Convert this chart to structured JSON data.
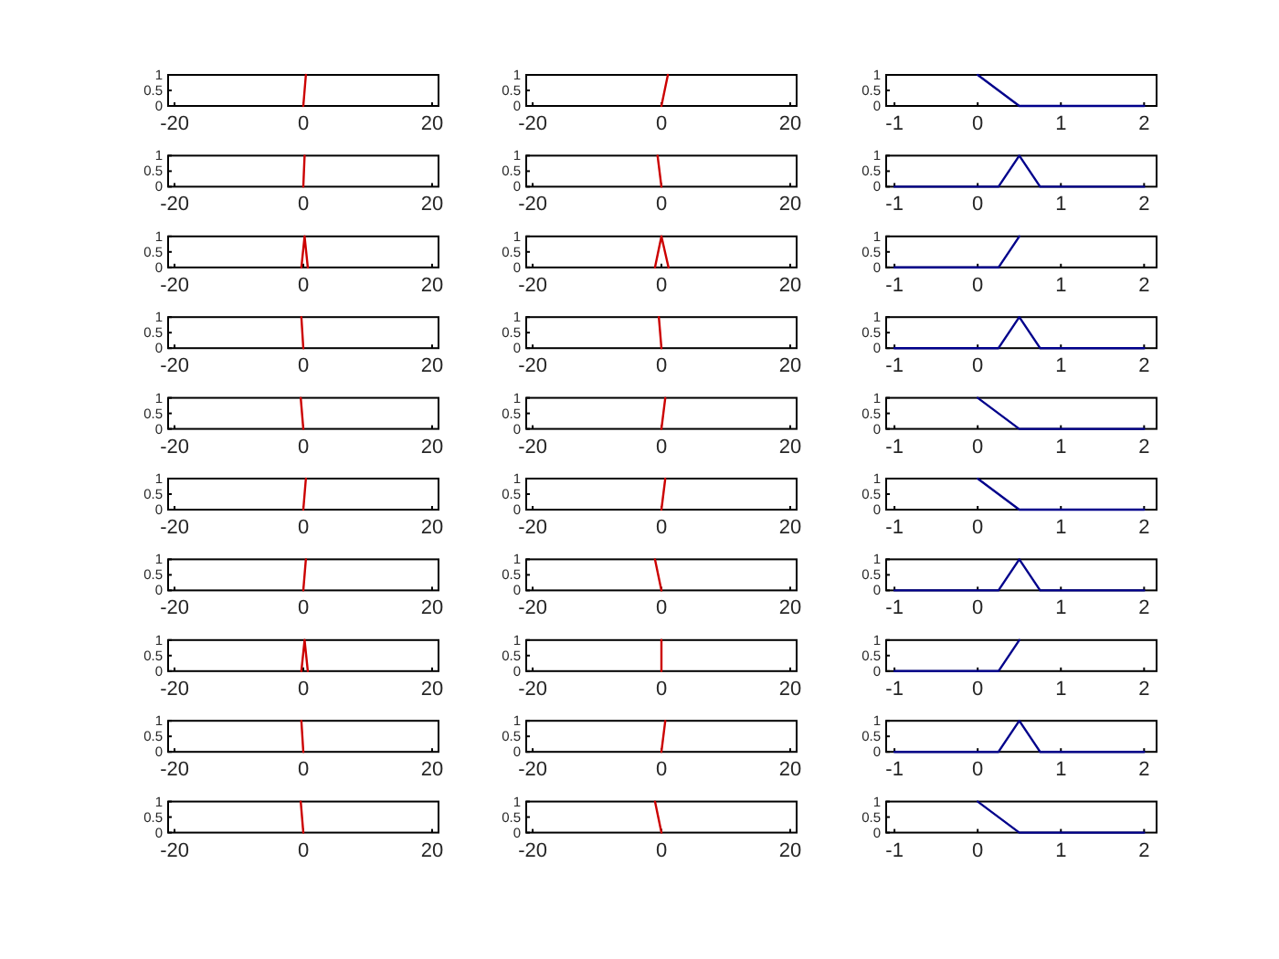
{
  "chart_data": [
    {
      "type": "line",
      "x": [
        0,
        0.4
      ],
      "values": [
        0,
        1
      ],
      "color": "#cc0000",
      "xlim": [
        -21,
        21
      ],
      "ylim": [
        0,
        1
      ],
      "xticks": [
        -20,
        0,
        20
      ],
      "yticks": [
        0,
        0.5,
        1
      ]
    },
    {
      "type": "line",
      "x": [
        0,
        1
      ],
      "values": [
        0,
        1
      ],
      "color": "#cc0000",
      "xlim": [
        -21,
        21
      ],
      "ylim": [
        0,
        1
      ],
      "xticks": [
        -20,
        0,
        20
      ],
      "yticks": [
        0,
        0.5,
        1
      ]
    },
    {
      "type": "line",
      "x": [
        0,
        0.5,
        2
      ],
      "values": [
        1,
        0,
        0
      ],
      "color": "#00008b",
      "xlim": [
        -1.1,
        2.15
      ],
      "ylim": [
        0,
        1
      ],
      "xticks": [
        -1,
        0,
        1,
        2
      ],
      "yticks": [
        0,
        0.5,
        1
      ]
    },
    {
      "type": "line",
      "x": [
        0,
        0.2
      ],
      "values": [
        0,
        1
      ],
      "color": "#cc0000",
      "xlim": [
        -21,
        21
      ],
      "ylim": [
        0,
        1
      ],
      "xticks": [
        -20,
        0,
        20
      ],
      "yticks": [
        0,
        0.5,
        1
      ]
    },
    {
      "type": "line",
      "x": [
        -0.6,
        0
      ],
      "values": [
        1,
        0
      ],
      "color": "#cc0000",
      "xlim": [
        -21,
        21
      ],
      "ylim": [
        0,
        1
      ],
      "xticks": [
        -20,
        0,
        20
      ],
      "yticks": [
        0,
        0.5,
        1
      ]
    },
    {
      "type": "line",
      "x": [
        -1,
        0.25,
        0.5,
        0.75,
        2
      ],
      "values": [
        0,
        0,
        1,
        0,
        0
      ],
      "color": "#00008b",
      "xlim": [
        -1.1,
        2.15
      ],
      "ylim": [
        0,
        1
      ],
      "xticks": [
        -1,
        0,
        1,
        2
      ],
      "yticks": [
        0,
        0.5,
        1
      ]
    },
    {
      "type": "line",
      "x": [
        -0.3,
        0.2,
        0.7
      ],
      "values": [
        0,
        1,
        0
      ],
      "color": "#cc0000",
      "xlim": [
        -21,
        21
      ],
      "ylim": [
        0,
        1
      ],
      "xticks": [
        -20,
        0,
        20
      ],
      "yticks": [
        0,
        0.5,
        1
      ]
    },
    {
      "type": "line",
      "x": [
        -1,
        0,
        1.1
      ],
      "values": [
        0,
        1,
        0
      ],
      "color": "#cc0000",
      "xlim": [
        -21,
        21
      ],
      "ylim": [
        0,
        1
      ],
      "xticks": [
        -20,
        0,
        20
      ],
      "yticks": [
        0,
        0.5,
        1
      ]
    },
    {
      "type": "line",
      "x": [
        -1,
        0.25,
        0.5
      ],
      "values": [
        0,
        0,
        1
      ],
      "color": "#00008b",
      "xlim": [
        -1.1,
        2.15
      ],
      "ylim": [
        0,
        1
      ],
      "xticks": [
        -1,
        0,
        1,
        2
      ],
      "yticks": [
        0,
        0.5,
        1
      ]
    },
    {
      "type": "line",
      "x": [
        -0.3,
        0
      ],
      "values": [
        1,
        0
      ],
      "color": "#cc0000",
      "xlim": [
        -21,
        21
      ],
      "ylim": [
        0,
        1
      ],
      "xticks": [
        -20,
        0,
        20
      ],
      "yticks": [
        0,
        0.5,
        1
      ]
    },
    {
      "type": "line",
      "x": [
        -0.4,
        0
      ],
      "values": [
        1,
        0
      ],
      "color": "#cc0000",
      "xlim": [
        -21,
        21
      ],
      "ylim": [
        0,
        1
      ],
      "xticks": [
        -20,
        0,
        20
      ],
      "yticks": [
        0,
        0.5,
        1
      ]
    },
    {
      "type": "line",
      "x": [
        -1,
        0.25,
        0.5,
        0.75,
        2
      ],
      "values": [
        0,
        0,
        1,
        0,
        0
      ],
      "color": "#00008b",
      "xlim": [
        -1.1,
        2.15
      ],
      "ylim": [
        0,
        1
      ],
      "xticks": [
        -1,
        0,
        1,
        2
      ],
      "yticks": [
        0,
        0.5,
        1
      ]
    },
    {
      "type": "line",
      "x": [
        -0.4,
        0
      ],
      "values": [
        1,
        0
      ],
      "color": "#cc0000",
      "xlim": [
        -21,
        21
      ],
      "ylim": [
        0,
        1
      ],
      "xticks": [
        -20,
        0,
        20
      ],
      "yticks": [
        0,
        0.5,
        1
      ]
    },
    {
      "type": "line",
      "x": [
        0,
        0.6
      ],
      "values": [
        0,
        1
      ],
      "color": "#cc0000",
      "xlim": [
        -21,
        21
      ],
      "ylim": [
        0,
        1
      ],
      "xticks": [
        -20,
        0,
        20
      ],
      "yticks": [
        0,
        0.5,
        1
      ]
    },
    {
      "type": "line",
      "x": [
        0,
        0.5,
        2
      ],
      "values": [
        1,
        0,
        0
      ],
      "color": "#00008b",
      "xlim": [
        -1.1,
        2.15
      ],
      "ylim": [
        0,
        1
      ],
      "xticks": [
        -1,
        0,
        1,
        2
      ],
      "yticks": [
        0,
        0.5,
        1
      ]
    },
    {
      "type": "line",
      "x": [
        0,
        0.4
      ],
      "values": [
        0,
        1
      ],
      "color": "#cc0000",
      "xlim": [
        -21,
        21
      ],
      "ylim": [
        0,
        1
      ],
      "xticks": [
        -20,
        0,
        20
      ],
      "yticks": [
        0,
        0.5,
        1
      ]
    },
    {
      "type": "line",
      "x": [
        0,
        0.6
      ],
      "values": [
        0,
        1
      ],
      "color": "#cc0000",
      "xlim": [
        -21,
        21
      ],
      "ylim": [
        0,
        1
      ],
      "xticks": [
        -20,
        0,
        20
      ],
      "yticks": [
        0,
        0.5,
        1
      ]
    },
    {
      "type": "line",
      "x": [
        0,
        0.5,
        2
      ],
      "values": [
        1,
        0,
        0
      ],
      "color": "#00008b",
      "xlim": [
        -1.1,
        2.15
      ],
      "ylim": [
        0,
        1
      ],
      "xticks": [
        -1,
        0,
        1,
        2
      ],
      "yticks": [
        0,
        0.5,
        1
      ]
    },
    {
      "type": "line",
      "x": [
        0,
        0.4
      ],
      "values": [
        0,
        1
      ],
      "color": "#cc0000",
      "xlim": [
        -21,
        21
      ],
      "ylim": [
        0,
        1
      ],
      "xticks": [
        -20,
        0,
        20
      ],
      "yticks": [
        0,
        0.5,
        1
      ]
    },
    {
      "type": "line",
      "x": [
        -1,
        0
      ],
      "values": [
        1,
        0
      ],
      "color": "#cc0000",
      "xlim": [
        -21,
        21
      ],
      "ylim": [
        0,
        1
      ],
      "xticks": [
        -20,
        0,
        20
      ],
      "yticks": [
        0,
        0.5,
        1
      ]
    },
    {
      "type": "line",
      "x": [
        -1,
        0.25,
        0.5,
        0.75,
        2
      ],
      "values": [
        0,
        0,
        1,
        0,
        0
      ],
      "color": "#00008b",
      "xlim": [
        -1.1,
        2.15
      ],
      "ylim": [
        0,
        1
      ],
      "xticks": [
        -1,
        0,
        1,
        2
      ],
      "yticks": [
        0,
        0.5,
        1
      ]
    },
    {
      "type": "line",
      "x": [
        -0.3,
        0.2,
        0.7
      ],
      "values": [
        0,
        1,
        0
      ],
      "color": "#cc0000",
      "xlim": [
        -21,
        21
      ],
      "ylim": [
        0,
        1
      ],
      "xticks": [
        -20,
        0,
        20
      ],
      "yticks": [
        0,
        0.5,
        1
      ]
    },
    {
      "type": "line",
      "x": [
        0,
        0
      ],
      "values": [
        0,
        1
      ],
      "color": "#cc0000",
      "xlim": [
        -21,
        21
      ],
      "ylim": [
        0,
        1
      ],
      "xticks": [
        -20,
        0,
        20
      ],
      "yticks": [
        0,
        0.5,
        1
      ]
    },
    {
      "type": "line",
      "x": [
        -1,
        0.25,
        0.5
      ],
      "values": [
        0,
        0,
        1
      ],
      "color": "#00008b",
      "xlim": [
        -1.1,
        2.15
      ],
      "ylim": [
        0,
        1
      ],
      "xticks": [
        -1,
        0,
        1,
        2
      ],
      "yticks": [
        0,
        0.5,
        1
      ]
    },
    {
      "type": "line",
      "x": [
        -0.3,
        0
      ],
      "values": [
        1,
        0
      ],
      "color": "#cc0000",
      "xlim": [
        -21,
        21
      ],
      "ylim": [
        0,
        1
      ],
      "xticks": [
        -20,
        0,
        20
      ],
      "yticks": [
        0,
        0.5,
        1
      ]
    },
    {
      "type": "line",
      "x": [
        0,
        0.6
      ],
      "values": [
        0,
        1
      ],
      "color": "#cc0000",
      "xlim": [
        -21,
        21
      ],
      "ylim": [
        0,
        1
      ],
      "xticks": [
        -20,
        0,
        20
      ],
      "yticks": [
        0,
        0.5,
        1
      ]
    },
    {
      "type": "line",
      "x": [
        -1,
        0.25,
        0.5,
        0.75,
        2
      ],
      "values": [
        0,
        0,
        1,
        0,
        0
      ],
      "color": "#00008b",
      "xlim": [
        -1.1,
        2.15
      ],
      "ylim": [
        0,
        1
      ],
      "xticks": [
        -1,
        0,
        1,
        2
      ],
      "yticks": [
        0,
        0.5,
        1
      ]
    },
    {
      "type": "line",
      "x": [
        -0.4,
        0
      ],
      "values": [
        1,
        0
      ],
      "color": "#cc0000",
      "xlim": [
        -21,
        21
      ],
      "ylim": [
        0,
        1
      ],
      "xticks": [
        -20,
        0,
        20
      ],
      "yticks": [
        0,
        0.5,
        1
      ]
    },
    {
      "type": "line",
      "x": [
        -1,
        0
      ],
      "values": [
        1,
        0
      ],
      "color": "#cc0000",
      "xlim": [
        -21,
        21
      ],
      "ylim": [
        0,
        1
      ],
      "xticks": [
        -20,
        0,
        20
      ],
      "yticks": [
        0,
        0.5,
        1
      ]
    },
    {
      "type": "line",
      "x": [
        0,
        0.5,
        2
      ],
      "values": [
        1,
        0,
        0
      ],
      "color": "#00008b",
      "xlim": [
        -1.1,
        2.15
      ],
      "ylim": [
        0,
        1
      ],
      "xticks": [
        -1,
        0,
        1,
        2
      ],
      "yticks": [
        0,
        0.5,
        1
      ]
    }
  ]
}
